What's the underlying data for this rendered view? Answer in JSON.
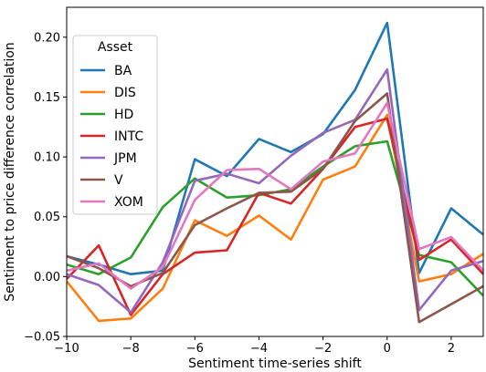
{
  "chart_data": {
    "type": "line",
    "title": "",
    "xlabel": "Sentiment time-series shift",
    "ylabel": "Sentiment to price difference correlation",
    "xlim": [
      -10,
      3
    ],
    "ylim": [
      -0.05,
      0.225
    ],
    "xticks": [
      -10,
      -8,
      -6,
      -4,
      -2,
      0,
      2
    ],
    "xtick_labels": [
      "−10",
      "−8",
      "−6",
      "−4",
      "−2",
      "0",
      "2"
    ],
    "yticks": [
      -0.05,
      0.0,
      0.05,
      0.1,
      0.15,
      0.2
    ],
    "ytick_labels": [
      "−0.05",
      "0.00",
      "0.05",
      "0.10",
      "0.15",
      "0.20"
    ],
    "grid": false,
    "legend": {
      "title": "Asset",
      "placement": "top-left"
    },
    "x": [
      -10,
      -9,
      -8,
      -7,
      -6,
      -5,
      -4,
      -3,
      -2,
      -1,
      0,
      1,
      2,
      3
    ],
    "series": [
      {
        "name": "BA",
        "color": "#1f77b4",
        "values": [
          0.017,
          0.01,
          0.002,
          0.005,
          0.098,
          0.084,
          0.115,
          0.104,
          0.119,
          0.156,
          0.212,
          0.003,
          0.057,
          0.035
        ]
      },
      {
        "name": "DIS",
        "color": "#ff7f0e",
        "values": [
          -0.004,
          -0.037,
          -0.035,
          -0.01,
          0.047,
          0.034,
          0.051,
          0.031,
          0.081,
          0.092,
          0.135,
          -0.004,
          0.002,
          0.019
        ]
      },
      {
        "name": "HD",
        "color": "#2ca02c",
        "values": [
          0.01,
          0.002,
          0.016,
          0.058,
          0.082,
          0.066,
          0.068,
          0.073,
          0.092,
          0.109,
          0.113,
          0.018,
          0.012,
          -0.016
        ]
      },
      {
        "name": "INTC",
        "color": "#d62728",
        "values": [
          -0.002,
          0.026,
          -0.032,
          0.002,
          0.02,
          0.022,
          0.07,
          0.061,
          0.09,
          0.125,
          0.132,
          0.014,
          0.031,
          0.002
        ]
      },
      {
        "name": "JPM",
        "color": "#9467bd",
        "values": [
          0.002,
          -0.007,
          -0.03,
          0.012,
          0.08,
          0.086,
          0.078,
          0.101,
          0.12,
          0.131,
          0.173,
          -0.028,
          0.005,
          0.013
        ]
      },
      {
        "name": "V",
        "color": "#8c564b",
        "values": [
          0.017,
          0.007,
          -0.008,
          0.003,
          0.043,
          0.057,
          0.07,
          0.071,
          0.09,
          0.13,
          0.153,
          -0.038,
          -0.023,
          -0.008
        ]
      },
      {
        "name": "XOM",
        "color": "#e377c2",
        "values": [
          0.005,
          0.011,
          -0.01,
          0.008,
          0.064,
          0.089,
          0.09,
          0.073,
          0.096,
          0.103,
          0.145,
          0.023,
          0.033,
          0.005
        ]
      }
    ]
  }
}
